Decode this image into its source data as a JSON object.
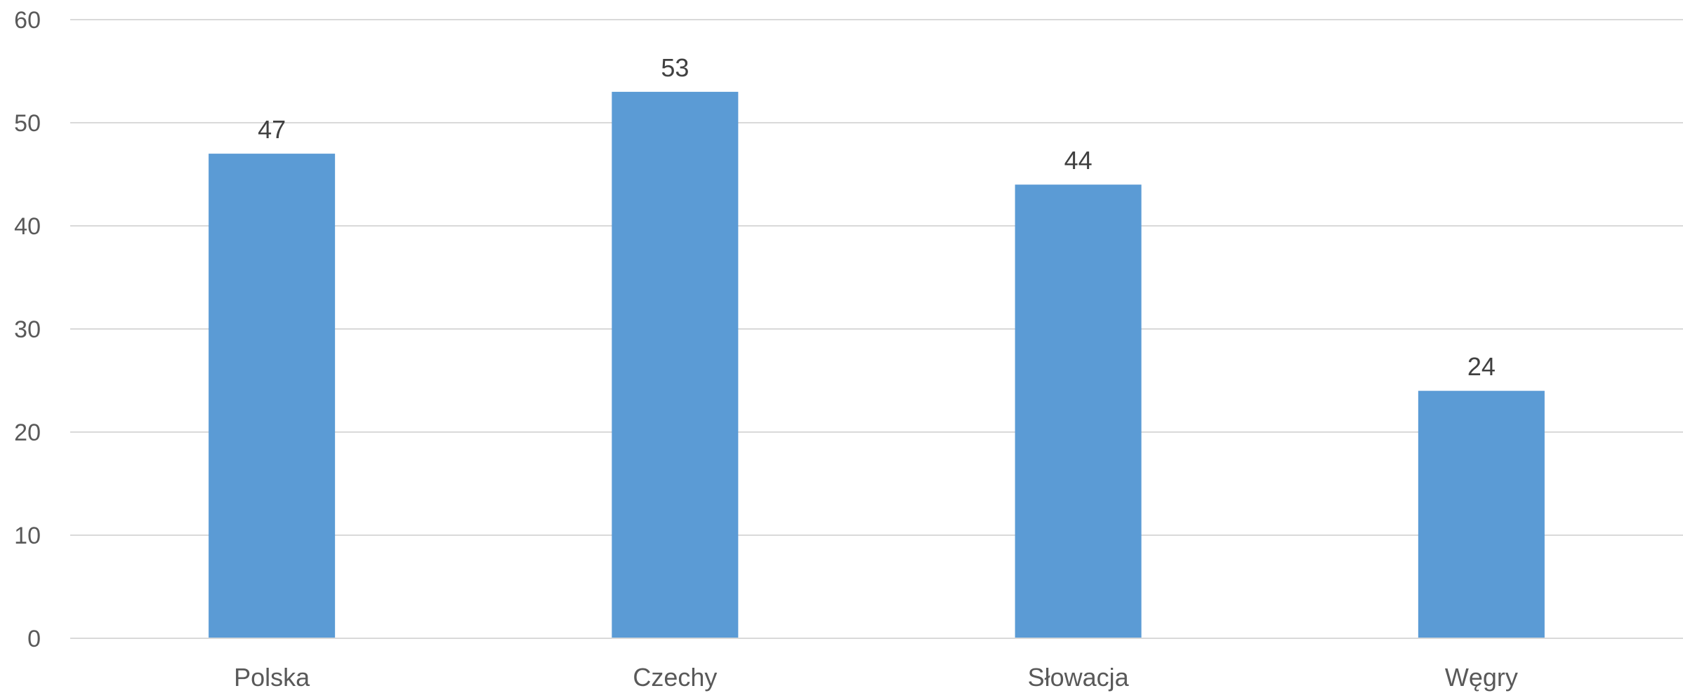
{
  "chart_data": {
    "type": "bar",
    "categories": [
      "Polska",
      "Czechy",
      "Słowacja",
      "Węgry"
    ],
    "values": [
      47,
      53,
      44,
      24
    ],
    "data_labels": [
      "47",
      "53",
      "44",
      "24"
    ],
    "ylim": [
      0,
      60
    ],
    "yticks": [
      "0",
      "10",
      "20",
      "30",
      "40",
      "50",
      "60"
    ],
    "grid": true,
    "bar_color": "#5b9bd5",
    "title": "",
    "xlabel": "",
    "ylabel": ""
  }
}
